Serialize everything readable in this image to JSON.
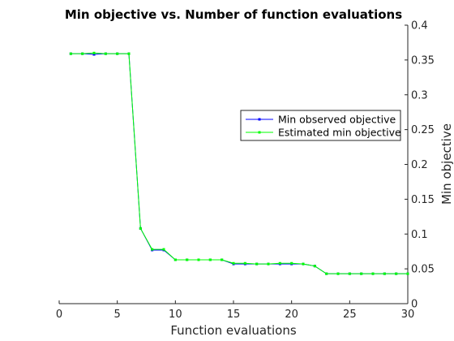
{
  "chart_data": {
    "type": "line",
    "title": "Min objective vs. Number of function evaluations",
    "xlabel": "Function evaluations",
    "ylabel": "Min objective",
    "xlim": [
      0,
      30
    ],
    "ylim": [
      0,
      0.4
    ],
    "x_ticks": [
      0,
      5,
      10,
      15,
      20,
      25,
      30
    ],
    "y_ticks": [
      0,
      0.05,
      0.1,
      0.15,
      0.2,
      0.25,
      0.3,
      0.35,
      0.4
    ],
    "x_tick_labels": [
      "0",
      "5",
      "10",
      "15",
      "20",
      "25",
      "30"
    ],
    "y_tick_labels": [
      "0",
      "0.05",
      "0.1",
      "0.15",
      "0.2",
      "0.25",
      "0.3",
      "0.35",
      "0.4"
    ],
    "y_axis_position": "right",
    "grid": false,
    "legend_position": "right-middle",
    "series": [
      {
        "name": "Min observed objective",
        "color": "#0000ff",
        "marker": "square",
        "x": [
          1,
          2,
          3,
          4,
          5,
          6,
          7,
          8,
          9,
          10,
          11,
          12,
          13,
          14,
          15,
          16,
          17,
          18,
          19,
          20,
          21,
          22,
          23,
          24,
          25,
          26,
          27,
          28,
          29,
          30
        ],
        "y": [
          0.359,
          0.359,
          0.358,
          0.359,
          0.359,
          0.359,
          0.108,
          0.077,
          0.077,
          0.063,
          0.063,
          0.063,
          0.063,
          0.063,
          0.057,
          0.057,
          0.057,
          0.057,
          0.057,
          0.057,
          0.057,
          0.054,
          0.043,
          0.043,
          0.043,
          0.043,
          0.043,
          0.043,
          0.043,
          0.043
        ]
      },
      {
        "name": "Estimated min objective",
        "color": "#00ff00",
        "marker": "square",
        "x": [
          1,
          2,
          3,
          4,
          5,
          6,
          7,
          8,
          9,
          10,
          11,
          12,
          13,
          14,
          15,
          16,
          17,
          18,
          19,
          20,
          21,
          22,
          23,
          24,
          25,
          26,
          27,
          28,
          29,
          30
        ],
        "y": [
          0.359,
          0.359,
          0.36,
          0.359,
          0.359,
          0.359,
          0.108,
          0.078,
          0.078,
          0.063,
          0.063,
          0.063,
          0.063,
          0.063,
          0.058,
          0.058,
          0.057,
          0.057,
          0.058,
          0.058,
          0.057,
          0.054,
          0.043,
          0.043,
          0.043,
          0.043,
          0.043,
          0.043,
          0.043,
          0.043
        ]
      }
    ]
  }
}
